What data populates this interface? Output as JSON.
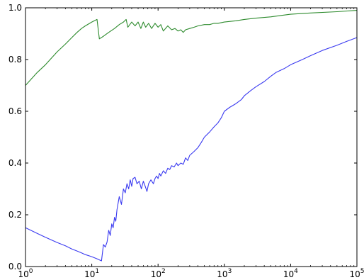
{
  "chart_data": {
    "type": "line",
    "title": "",
    "xlabel": "",
    "ylabel": "",
    "x_scale": "log",
    "xlim": [
      1,
      100000
    ],
    "ylim": [
      0.0,
      1.0
    ],
    "grid": false,
    "x_tick_values": [
      1,
      10,
      100,
      1000,
      10000,
      100000
    ],
    "x_ticks": [
      {
        "base": "10",
        "exp": "0"
      },
      {
        "base": "10",
        "exp": "1"
      },
      {
        "base": "10",
        "exp": "2"
      },
      {
        "base": "10",
        "exp": "3"
      },
      {
        "base": "10",
        "exp": "4"
      },
      {
        "base": "10",
        "exp": "5"
      }
    ],
    "y_ticks": [
      "0.0",
      "0.2",
      "0.4",
      "0.6",
      "0.8",
      "1.0"
    ],
    "y_tick_values": [
      0.0,
      0.2,
      0.4,
      0.6,
      0.8,
      1.0
    ],
    "series": [
      {
        "color": "#3a3af0",
        "points": [
          [
            1,
            0.15
          ],
          [
            1.5,
            0.128
          ],
          [
            2,
            0.113
          ],
          [
            3,
            0.093
          ],
          [
            4,
            0.08
          ],
          [
            5,
            0.068
          ],
          [
            6,
            0.06
          ],
          [
            7,
            0.053
          ],
          [
            8,
            0.046
          ],
          [
            10,
            0.038
          ],
          [
            12,
            0.03
          ],
          [
            14,
            0.022
          ],
          [
            15,
            0.085
          ],
          [
            16,
            0.075
          ],
          [
            17,
            0.095
          ],
          [
            18,
            0.14
          ],
          [
            19,
            0.12
          ],
          [
            20,
            0.165
          ],
          [
            21,
            0.15
          ],
          [
            22,
            0.19
          ],
          [
            23,
            0.175
          ],
          [
            24,
            0.22
          ],
          [
            26,
            0.27
          ],
          [
            28,
            0.24
          ],
          [
            30,
            0.3
          ],
          [
            32,
            0.285
          ],
          [
            34,
            0.32
          ],
          [
            36,
            0.3
          ],
          [
            38,
            0.335
          ],
          [
            40,
            0.31
          ],
          [
            42,
            0.34
          ],
          [
            45,
            0.345
          ],
          [
            48,
            0.32
          ],
          [
            52,
            0.33
          ],
          [
            56,
            0.3
          ],
          [
            60,
            0.33
          ],
          [
            64,
            0.31
          ],
          [
            68,
            0.29
          ],
          [
            72,
            0.32
          ],
          [
            78,
            0.335
          ],
          [
            85,
            0.32
          ],
          [
            90,
            0.34
          ],
          [
            95,
            0.35
          ],
          [
            100,
            0.34
          ],
          [
            105,
            0.36
          ],
          [
            110,
            0.35
          ],
          [
            120,
            0.37
          ],
          [
            130,
            0.36
          ],
          [
            140,
            0.38
          ],
          [
            150,
            0.375
          ],
          [
            160,
            0.39
          ],
          [
            175,
            0.385
          ],
          [
            190,
            0.4
          ],
          [
            200,
            0.39
          ],
          [
            220,
            0.4
          ],
          [
            240,
            0.395
          ],
          [
            260,
            0.42
          ],
          [
            280,
            0.41
          ],
          [
            300,
            0.43
          ],
          [
            350,
            0.445
          ],
          [
            400,
            0.46
          ],
          [
            450,
            0.48
          ],
          [
            500,
            0.5
          ],
          [
            600,
            0.52
          ],
          [
            700,
            0.54
          ],
          [
            800,
            0.555
          ],
          [
            900,
            0.575
          ],
          [
            1000,
            0.6
          ],
          [
            1200,
            0.615
          ],
          [
            1500,
            0.63
          ],
          [
            1800,
            0.645
          ],
          [
            2000,
            0.66
          ],
          [
            2500,
            0.68
          ],
          [
            3000,
            0.695
          ],
          [
            4000,
            0.715
          ],
          [
            5000,
            0.735
          ],
          [
            6000,
            0.75
          ],
          [
            8000,
            0.765
          ],
          [
            10000,
            0.78
          ],
          [
            15000,
            0.8
          ],
          [
            20000,
            0.815
          ],
          [
            30000,
            0.835
          ],
          [
            50000,
            0.855
          ],
          [
            70000,
            0.87
          ],
          [
            100000,
            0.885
          ]
        ]
      },
      {
        "color": "#2e8b2e",
        "points": [
          [
            1,
            0.7
          ],
          [
            1.5,
            0.75
          ],
          [
            2,
            0.78
          ],
          [
            3,
            0.83
          ],
          [
            4,
            0.86
          ],
          [
            5,
            0.885
          ],
          [
            6,
            0.905
          ],
          [
            7,
            0.92
          ],
          [
            8,
            0.93
          ],
          [
            10,
            0.945
          ],
          [
            12,
            0.955
          ],
          [
            13,
            0.88
          ],
          [
            15,
            0.89
          ],
          [
            18,
            0.905
          ],
          [
            22,
            0.92
          ],
          [
            26,
            0.935
          ],
          [
            30,
            0.945
          ],
          [
            33,
            0.955
          ],
          [
            35,
            0.925
          ],
          [
            40,
            0.945
          ],
          [
            45,
            0.93
          ],
          [
            50,
            0.945
          ],
          [
            55,
            0.92
          ],
          [
            60,
            0.945
          ],
          [
            65,
            0.925
          ],
          [
            72,
            0.94
          ],
          [
            80,
            0.92
          ],
          [
            90,
            0.94
          ],
          [
            100,
            0.925
          ],
          [
            110,
            0.935
          ],
          [
            120,
            0.91
          ],
          [
            140,
            0.93
          ],
          [
            160,
            0.915
          ],
          [
            180,
            0.92
          ],
          [
            200,
            0.91
          ],
          [
            220,
            0.915
          ],
          [
            240,
            0.905
          ],
          [
            260,
            0.915
          ],
          [
            300,
            0.92
          ],
          [
            350,
            0.925
          ],
          [
            400,
            0.93
          ],
          [
            500,
            0.935
          ],
          [
            600,
            0.935
          ],
          [
            700,
            0.94
          ],
          [
            800,
            0.94
          ],
          [
            1000,
            0.945
          ],
          [
            1500,
            0.95
          ],
          [
            2000,
            0.955
          ],
          [
            3000,
            0.96
          ],
          [
            5000,
            0.965
          ],
          [
            7000,
            0.97
          ],
          [
            10000,
            0.975
          ],
          [
            20000,
            0.98
          ],
          [
            50000,
            0.985
          ],
          [
            100000,
            0.99
          ]
        ]
      }
    ]
  }
}
